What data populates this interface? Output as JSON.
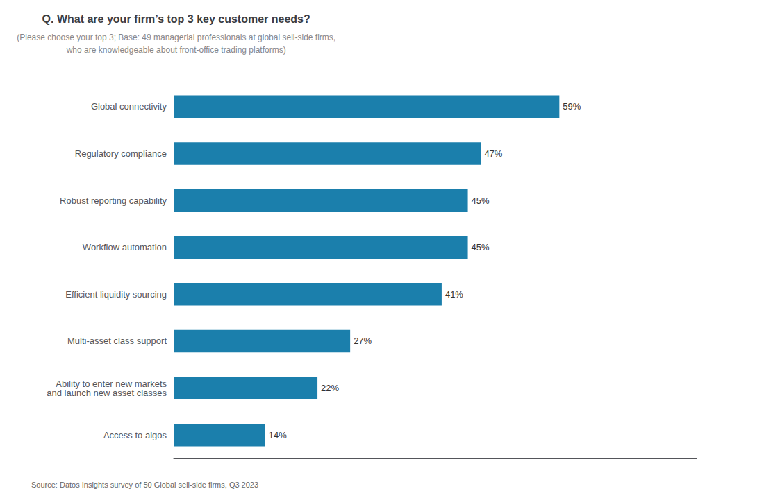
{
  "chart_data": {
    "type": "bar",
    "orientation": "horizontal",
    "title": "Q. What are your firm’s top 3 key customer needs?",
    "subtitle": "(Please choose your top 3; Base: 49 managerial professionals at global sell-side firms,\nwho are knowledgeable about front-office trading platforms)",
    "source": "Source: Datos Insights survey of 50 Global sell-side firms, Q3 2023",
    "categories": [
      "Global connectivity",
      "Regulatory compliance",
      "Robust reporting capability",
      "Workflow automation",
      "Efficient liquidity sourcing",
      "Multi-asset class support",
      "Ability to enter new markets\nand launch new asset classes",
      "Access to algos"
    ],
    "values": [
      59,
      47,
      45,
      45,
      41,
      27,
      22,
      14
    ],
    "value_labels": [
      "59%",
      "47%",
      "45%",
      "45%",
      "41%",
      "27%",
      "22%",
      "14%"
    ],
    "data_labels": true,
    "color": "#1b7fac",
    "xlim": [
      0,
      80
    ],
    "tick_labels": "y",
    "grid": false
  }
}
